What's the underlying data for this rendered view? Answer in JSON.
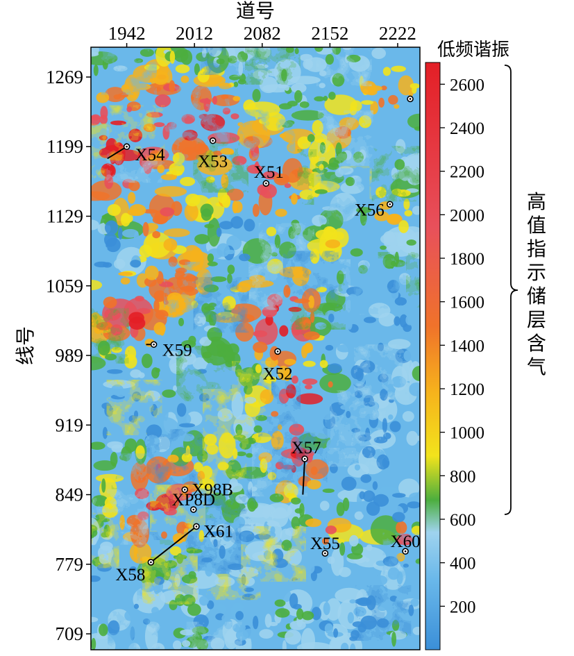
{
  "figure": {
    "x_axis_title": "道号",
    "y_axis_title": "线号",
    "x_ticks": [
      "1942",
      "2012",
      "2082",
      "2152",
      "2222"
    ],
    "y_ticks": [
      "1269",
      "1199",
      "1129",
      "1059",
      "989",
      "919",
      "849",
      "779",
      "709"
    ],
    "colorbar": {
      "title": "低频谐振",
      "ticks": [
        "2600",
        "2400",
        "2200",
        "2000",
        "1800",
        "1600",
        "1400",
        "1200",
        "1000",
        "800",
        "600",
        "400",
        "200"
      ],
      "range": [
        0,
        2700
      ],
      "colors": [
        "#3b8fd8",
        "#6ab8ea",
        "#9fd3ee",
        "#4cae3e",
        "#f2e31c",
        "#f6b21c",
        "#f0732a",
        "#e8505b",
        "#e31f26"
      ]
    },
    "annotation": {
      "text": "高值指示储层含气",
      "bracket_range": [
        600,
        2700
      ]
    }
  },
  "chart_data": {
    "type": "heatmap",
    "title": "",
    "xlabel": "道号",
    "ylabel": "线号",
    "colorbar_label": "低频谐振",
    "x_ticks": [
      1942,
      2012,
      2082,
      2152,
      2222
    ],
    "y_ticks": [
      1269,
      1199,
      1129,
      1059,
      989,
      919,
      849,
      779,
      709
    ],
    "xlim": [
      1905,
      2245
    ],
    "ylim": [
      693,
      1299
    ],
    "clim": [
      0,
      2700
    ],
    "wells": [
      {
        "name": "X54",
        "x": 1942,
        "y": 1199,
        "path_to": [
          1922,
          1187
        ]
      },
      {
        "name": "X53",
        "x": 2031,
        "y": 1205
      },
      {
        "name": "X51",
        "x": 2086,
        "y": 1162
      },
      {
        "name": "X56",
        "x": 2214,
        "y": 1141
      },
      {
        "name": "X59",
        "x": 1970,
        "y": 1000,
        "path_to": [
          1962,
          1000
        ]
      },
      {
        "name": "X52",
        "x": 2098,
        "y": 993
      },
      {
        "name": "X57",
        "x": 2126,
        "y": 885,
        "path_to": [
          2124,
          849
        ]
      },
      {
        "name": "X98B",
        "x": 2002,
        "y": 854
      },
      {
        "name": "XP8D",
        "x": 2011,
        "y": 834
      },
      {
        "name": "X61",
        "x": 2014,
        "y": 817,
        "path_to": [
          1967,
          781
        ]
      },
      {
        "name": "X58",
        "x": 1967,
        "y": 781
      },
      {
        "name": "X55",
        "x": 2147,
        "y": 790
      },
      {
        "name": "X60",
        "x": 2230,
        "y": 792
      },
      {
        "name": "",
        "x": 2235,
        "y": 1247
      }
    ],
    "note": "Amplitude map: high values (red) concentrated NW and central; low values (blue) in east and south."
  }
}
